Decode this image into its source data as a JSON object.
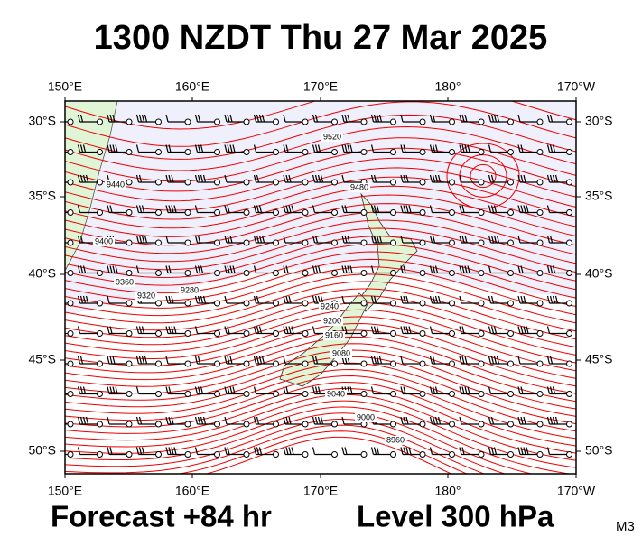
{
  "header": {
    "title": "1300 NZDT Thu 27 Mar 2025"
  },
  "axes": {
    "longitudes": [
      "150°E",
      "160°E",
      "170°E",
      "180°",
      "170°W"
    ],
    "latitudes": [
      "30°S",
      "35°S",
      "40°S",
      "45°S",
      "50°S"
    ]
  },
  "contour_labels": [
    "9520",
    "9480",
    "9440",
    "9400",
    "9360",
    "9320",
    "9280",
    "9240",
    "9200",
    "9160",
    "9080",
    "9040",
    "9000",
    "8960"
  ],
  "footer": {
    "forecast": "Forecast +84 hr",
    "level": "Level 300 hPa",
    "model": "M3"
  }
}
